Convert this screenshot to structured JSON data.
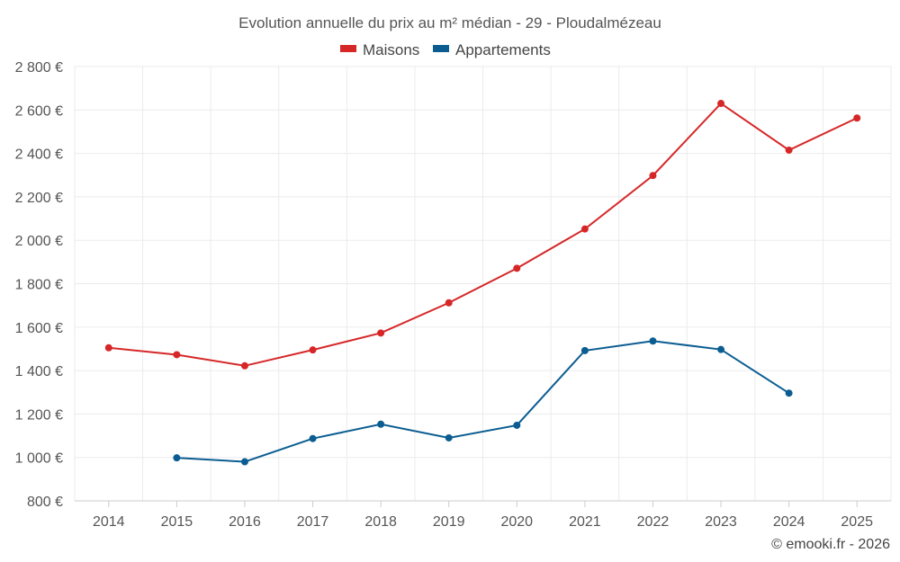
{
  "chart_data": {
    "type": "line",
    "title": "Evolution annuelle du prix au m² médian - 29 - Ploudalmézeau",
    "categories": [
      "2014",
      "2015",
      "2016",
      "2017",
      "2018",
      "2019",
      "2020",
      "2021",
      "2022",
      "2023",
      "2024",
      "2025"
    ],
    "series": [
      {
        "name": "Maisons",
        "color": "#d62728",
        "values": [
          1505,
          1473,
          1422,
          1495,
          1573,
          1712,
          1871,
          2052,
          2298,
          2630,
          2415,
          2563
        ]
      },
      {
        "name": "Appartements",
        "color": "#0b5d91",
        "values": [
          null,
          998,
          980,
          1087,
          1153,
          1090,
          1148,
          1492,
          1536,
          1497,
          1296,
          null
        ]
      }
    ],
    "ylim": [
      800,
      2800
    ],
    "yticks": [
      800,
      1000,
      1200,
      1400,
      1600,
      1800,
      2000,
      2200,
      2400,
      2600,
      2800
    ],
    "ytick_labels": [
      "800 €",
      "1 000 €",
      "1 200 €",
      "1 400 €",
      "1 600 €",
      "1 800 €",
      "2 000 €",
      "2 200 €",
      "2 400 €",
      "2 600 €",
      "2 800 €"
    ],
    "xlabel": "",
    "ylabel": "",
    "grid": true,
    "legend_position": "top-center"
  },
  "credit": "© emooki.fr - 2026"
}
